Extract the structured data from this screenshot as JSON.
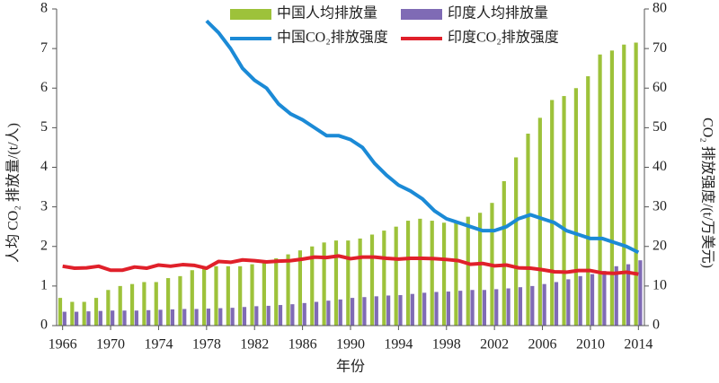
{
  "chart_data": {
    "type": "bar",
    "xlabel": "年份",
    "ylabel": "人均 CO₂ 排放量/(t/人)",
    "y2label": "CO₂ 排放强度/(t/万美元)",
    "categories": [
      "1966",
      null,
      null,
      null,
      "1970",
      null,
      null,
      null,
      "1974",
      null,
      null,
      null,
      "1978",
      null,
      null,
      null,
      "1982",
      null,
      null,
      null,
      "1986",
      null,
      null,
      null,
      "1990",
      null,
      null,
      null,
      "1994",
      null,
      null,
      null,
      "1998",
      null,
      null,
      null,
      "2002",
      null,
      null,
      null,
      "2006",
      null,
      null,
      null,
      "2010",
      null,
      null,
      null,
      "2014"
    ],
    "ylim": [
      0,
      8
    ],
    "yticks": [
      0,
      1,
      2,
      3,
      4,
      5,
      6,
      7,
      8
    ],
    "y2lim": [
      0,
      80
    ],
    "y2ticks": [
      0,
      10,
      20,
      30,
      40,
      50,
      60,
      70,
      80
    ],
    "legend": "top",
    "series": [
      {
        "name": "中国人均排放量",
        "type": "bar",
        "color": "#9dc23a",
        "values": [
          0.7,
          0.6,
          0.6,
          0.7,
          0.9,
          1.0,
          1.05,
          1.1,
          1.1,
          1.2,
          1.25,
          1.4,
          1.5,
          1.5,
          1.5,
          1.5,
          1.55,
          1.6,
          1.7,
          1.8,
          1.9,
          2.0,
          2.1,
          2.15,
          2.15,
          2.2,
          2.3,
          2.4,
          2.5,
          2.65,
          2.7,
          2.65,
          2.6,
          2.65,
          2.75,
          2.85,
          3.1,
          3.65,
          4.25,
          4.85,
          5.25,
          5.7,
          5.8,
          6.0,
          6.3,
          6.85,
          6.95,
          7.1,
          7.15
        ]
      },
      {
        "name": "印度人均排放量",
        "type": "bar",
        "color": "#7f6bb5",
        "values": [
          0.35,
          0.35,
          0.36,
          0.37,
          0.38,
          0.38,
          0.38,
          0.39,
          0.4,
          0.41,
          0.42,
          0.42,
          0.43,
          0.44,
          0.45,
          0.47,
          0.49,
          0.5,
          0.52,
          0.54,
          0.57,
          0.6,
          0.63,
          0.66,
          0.7,
          0.72,
          0.74,
          0.76,
          0.77,
          0.8,
          0.83,
          0.85,
          0.86,
          0.88,
          0.9,
          0.9,
          0.92,
          0.94,
          0.97,
          1.0,
          1.05,
          1.1,
          1.17,
          1.25,
          1.3,
          1.38,
          1.5,
          1.55,
          1.65
        ]
      },
      {
        "name": "中国CO₂排放强度",
        "type": "line",
        "axis": "y2",
        "color": "#1b8ad6",
        "values": [
          null,
          null,
          null,
          null,
          null,
          null,
          null,
          null,
          null,
          null,
          null,
          null,
          77,
          74,
          70,
          65,
          62,
          60,
          56,
          53.5,
          52,
          50,
          48,
          48,
          47,
          45,
          41,
          38,
          35.5,
          34,
          32,
          29,
          27,
          26,
          25,
          24,
          24,
          25,
          27,
          28,
          27,
          26,
          24,
          23,
          22,
          22,
          21,
          20,
          18.5
        ]
      },
      {
        "name": "印度CO₂排放强度",
        "type": "line",
        "axis": "y2",
        "color": "#e0202a",
        "values": [
          15,
          14.5,
          14.6,
          15,
          14,
          14,
          14.8,
          14.5,
          15.3,
          15,
          15.4,
          15.2,
          14.5,
          16.2,
          16,
          16.6,
          16.4,
          16.1,
          16.3,
          16.4,
          16.8,
          17.3,
          17.2,
          17.6,
          16.9,
          17.3,
          17.3,
          17.0,
          16.8,
          17,
          17,
          16.9,
          16.7,
          16.4,
          15.5,
          15.7,
          15.1,
          15.3,
          14.6,
          14.5,
          14.1,
          13.6,
          13.5,
          13.9,
          13.9,
          13.3,
          13.2,
          13.5,
          13.0
        ]
      }
    ]
  }
}
